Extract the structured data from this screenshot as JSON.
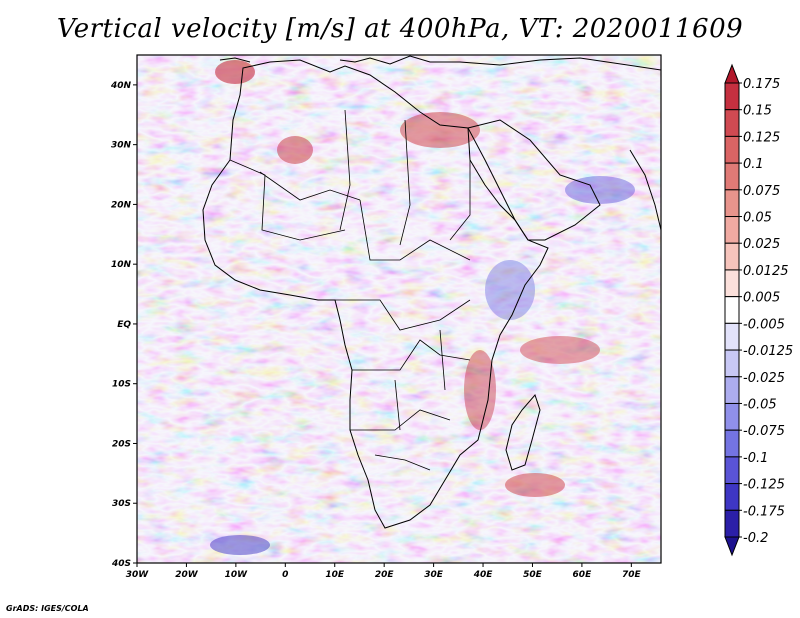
{
  "title": "Vertical velocity [m/s] at 400hPa, VT: 2020011609",
  "credit": "GrADS: IGES/COLA",
  "map": {
    "region": "Africa and surrounding oceans",
    "lon_range": [
      -30,
      76
    ],
    "lat_range": [
      -40,
      45
    ],
    "lon_ticks": [
      "30W",
      "20W",
      "10W",
      "0",
      "10E",
      "20E",
      "30E",
      "40E",
      "50E",
      "60E",
      "70E"
    ],
    "lat_ticks": [
      "40N",
      "30N",
      "20N",
      "10N",
      "EQ",
      "10S",
      "20S",
      "30S",
      "40S"
    ],
    "features": [
      "coastlines",
      "country borders"
    ],
    "colors": {
      "ascent_strong": "#b2182b",
      "ascent_weak": "#f4a582",
      "neutral": "#ffffff",
      "descent_weak": "#a8a8f0",
      "descent_strong": "#2b1fa8"
    }
  },
  "colorbar": {
    "labels": [
      "0.175",
      "0.15",
      "0.125",
      "0.1",
      "0.075",
      "0.05",
      "0.025",
      "0.0125",
      "0.005",
      "-0.005",
      "-0.0125",
      "-0.025",
      "-0.05",
      "-0.075",
      "-0.1",
      "-0.125",
      "-0.175",
      "-0.2"
    ],
    "colors": [
      "#b2182b",
      "#c53040",
      "#d04a52",
      "#da6464",
      "#e07a76",
      "#e8948c",
      "#f0aaa2",
      "#f6c4bc",
      "#fbe0db",
      "#ffffff",
      "#e2e2fa",
      "#c8c8f5",
      "#adadef",
      "#9090ea",
      "#7474e2",
      "#5a54d6",
      "#3e36c4",
      "#2b1fa8",
      "#1d1290"
    ]
  }
}
